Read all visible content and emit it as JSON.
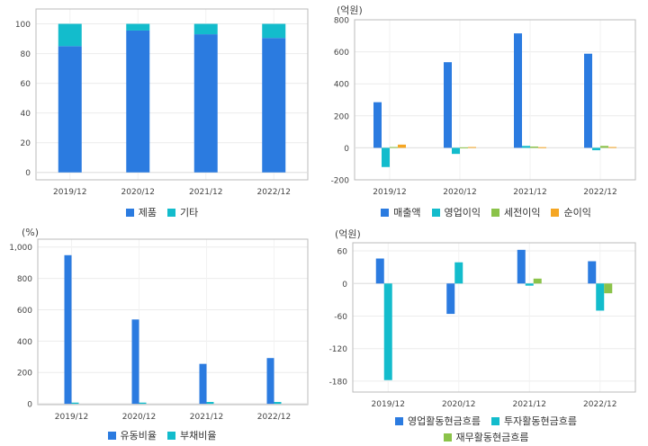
{
  "chart_data": [
    {
      "type": "bar",
      "stacked": true,
      "categories": [
        "2019/12",
        "2020/12",
        "2021/12",
        "2022/12"
      ],
      "series": [
        {
          "name": "제품",
          "values": [
            85,
            95.5,
            93,
            90.5
          ],
          "color": "#2b7be0"
        },
        {
          "name": "기타",
          "values": [
            15,
            4.5,
            7,
            9.5
          ],
          "color": "#13bccc"
        }
      ],
      "yticks": [
        "0",
        "20",
        "40",
        "60",
        "80",
        "100"
      ],
      "ylim": [
        -5,
        110
      ],
      "unit": "",
      "grid": true,
      "legend_position": "bottom"
    },
    {
      "type": "bar",
      "categories": [
        "2019/12",
        "2020/12",
        "2021/12",
        "2022/12"
      ],
      "series": [
        {
          "name": "매출액",
          "values": [
            285,
            535,
            715,
            588
          ],
          "color": "#2b7be0"
        },
        {
          "name": "영업이익",
          "values": [
            -120,
            -38,
            12,
            -15
          ],
          "color": "#13bccc"
        },
        {
          "name": "세전이익",
          "values": [
            5,
            3,
            8,
            12
          ],
          "color": "#8bc34a"
        },
        {
          "name": "순이익",
          "values": [
            20,
            5,
            4,
            5
          ],
          "color": "#f5a623"
        }
      ],
      "yticks": [
        "-200",
        "0",
        "200",
        "400",
        "600",
        "800"
      ],
      "ylim": [
        -200,
        800
      ],
      "unit": "(억원)",
      "grid": true,
      "legend_position": "bottom"
    },
    {
      "type": "bar",
      "categories": [
        "2019/12",
        "2020/12",
        "2021/12",
        "2022/12"
      ],
      "series": [
        {
          "name": "유동비율",
          "values": [
            948,
            538,
            255,
            292
          ],
          "color": "#2b7be0"
        },
        {
          "name": "부채비율",
          "values": [
            8,
            8,
            12,
            12
          ],
          "color": "#13bccc"
        }
      ],
      "yticks": [
        "0",
        "200",
        "400",
        "600",
        "800",
        "1,000"
      ],
      "ylim": [
        -5,
        1050
      ],
      "unit": "(%)",
      "grid": true,
      "legend_position": "bottom"
    },
    {
      "type": "bar",
      "categories": [
        "2019/12",
        "2020/12",
        "2021/12",
        "2022/12"
      ],
      "series": [
        {
          "name": "영업활동현금흐름",
          "values": [
            46,
            -56,
            62,
            41
          ],
          "color": "#2b7be0"
        },
        {
          "name": "투자활동현금흐름",
          "values": [
            -178,
            39,
            -4,
            -50
          ],
          "color": "#13bccc"
        },
        {
          "name": "재무활동현금흐름",
          "values": [
            0,
            0,
            9,
            -18
          ],
          "color": "#8bc34a"
        }
      ],
      "yticks": [
        "-180",
        "-120",
        "-60",
        "0",
        "60"
      ],
      "ylim": [
        -200,
        75
      ],
      "unit": "(억원)",
      "grid": true,
      "legend_position": "bottom"
    }
  ]
}
